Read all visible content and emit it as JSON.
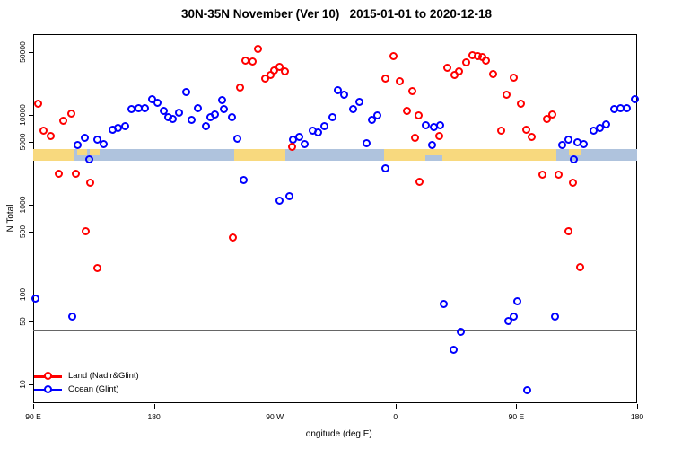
{
  "chart_data": {
    "type": "scatter",
    "title": "30N-35N November (Ver 10)   2015-01-01 to 2020-12-18",
    "xlabel": "Longitude (deg E)",
    "ylabel": "N Total",
    "x_axis": {
      "note": "longitude axis is continuous from 90E eastward through 180, 90W, 0, back to 180 (units: deg along axis, 90..540)",
      "range": [
        90,
        540
      ],
      "ticks": [
        {
          "pos": 90,
          "label": "90 E"
        },
        {
          "pos": 180,
          "label": "180"
        },
        {
          "pos": 270,
          "label": "90 W"
        },
        {
          "pos": 360,
          "label": "0"
        },
        {
          "pos": 450,
          "label": "90 E"
        },
        {
          "pos": 540,
          "label": "180"
        }
      ]
    },
    "y_axis": {
      "scale": "log10",
      "range": [
        6.2,
        79400
      ],
      "ticks": [
        50000,
        10000,
        5000,
        1000,
        500,
        100,
        50,
        10
      ]
    },
    "reference_line": {
      "value": 40,
      "color": "#666666"
    },
    "map_strip": {
      "description": "land/ocean strip drawn across the plot near N=3000-4200",
      "value_top": 4170,
      "value_bottom": 3090,
      "ocean_color": "#AFC3DD",
      "land_color": "#F8D97E",
      "land_segments": [
        {
          "from": 90,
          "to": 121,
          "part": "full"
        },
        {
          "from": 122.5,
          "to": 130,
          "part": "top"
        },
        {
          "from": 132,
          "to": 139.5,
          "part": "top"
        },
        {
          "from": 240,
          "to": 278,
          "part": "full"
        },
        {
          "from": 351.5,
          "to": 480,
          "part": "full"
        },
        {
          "from": 489,
          "to": 498,
          "part": "top"
        }
      ],
      "ocean_overlays": [
        {
          "from": 382,
          "to": 395,
          "part": "bottom"
        }
      ]
    },
    "legend": [
      {
        "name": "land",
        "label": "Land (Nadir&Glint)",
        "color": "#FF0000"
      },
      {
        "name": "ocean",
        "label": "Ocean (Glint)",
        "color": "#0000FF"
      }
    ],
    "series": [
      {
        "name": "Land (Nadir&Glint)",
        "color": "#FF0000",
        "points": [
          [
            93.8,
            13200
          ],
          [
            98.2,
            6600
          ],
          [
            103.6,
            5750
          ],
          [
            109.4,
            2190
          ],
          [
            112.5,
            8500
          ],
          [
            118.8,
            10200
          ],
          [
            122.1,
            2190
          ],
          [
            129.5,
            505
          ],
          [
            132.6,
            1730
          ],
          [
            138.4,
            198
          ],
          [
            239.2,
            430
          ],
          [
            244.4,
            19800
          ],
          [
            248.6,
            40100
          ],
          [
            253.8,
            38600
          ],
          [
            257.8,
            53700
          ],
          [
            263.1,
            25300
          ],
          [
            267.2,
            27900
          ],
          [
            269.9,
            31000
          ],
          [
            273.8,
            34200
          ],
          [
            277.8,
            30500
          ],
          [
            283.2,
            4430
          ],
          [
            353.0,
            25400
          ],
          [
            358.6,
            45000
          ],
          [
            363.7,
            23300
          ],
          [
            368.6,
            10900
          ],
          [
            372.6,
            18200
          ],
          [
            374.6,
            5460
          ],
          [
            377.5,
            9900
          ],
          [
            378.2,
            1790
          ],
          [
            392.7,
            5740
          ],
          [
            398.7,
            33300
          ],
          [
            403.9,
            27900
          ],
          [
            407.6,
            30500
          ],
          [
            412.8,
            37800
          ],
          [
            417.5,
            46000
          ],
          [
            421.5,
            44700
          ],
          [
            425.0,
            43700
          ],
          [
            427.8,
            40100
          ],
          [
            432.9,
            28300
          ],
          [
            438.9,
            6650
          ],
          [
            442.7,
            16500
          ],
          [
            448.5,
            26000
          ],
          [
            453.4,
            13300
          ],
          [
            457.4,
            6760
          ],
          [
            461.9,
            5590
          ],
          [
            469.4,
            2160
          ],
          [
            473.0,
            8990
          ],
          [
            476.8,
            10100
          ],
          [
            481.9,
            2130
          ],
          [
            489.1,
            509
          ],
          [
            492.4,
            1730
          ],
          [
            497.6,
            201
          ]
        ]
      },
      {
        "name": "Ocean (Glint)",
        "color": "#0000FF",
        "points": [
          [
            92.0,
            90
          ],
          [
            119.2,
            57
          ],
          [
            123.2,
            4630
          ],
          [
            129.0,
            5500
          ],
          [
            132.2,
            3180
          ],
          [
            138.2,
            5250
          ],
          [
            142.9,
            4680
          ],
          [
            149.6,
            6760
          ],
          [
            153.4,
            7030
          ],
          [
            158.9,
            7410
          ],
          [
            163.8,
            11400
          ],
          [
            169.0,
            11700
          ],
          [
            173.4,
            11700
          ],
          [
            179.0,
            14800
          ],
          [
            182.8,
            13500
          ],
          [
            187.5,
            10900
          ],
          [
            190.6,
            9330
          ],
          [
            194.2,
            8990
          ],
          [
            198.6,
            10600
          ],
          [
            204.0,
            17700
          ],
          [
            208.0,
            8790
          ],
          [
            213.1,
            11700
          ],
          [
            218.7,
            7410
          ],
          [
            222.0,
            9330
          ],
          [
            225.4,
            9930
          ],
          [
            230.7,
            14600
          ],
          [
            232.5,
            11400
          ],
          [
            238.1,
            9330
          ],
          [
            242.6,
            5370
          ],
          [
            247.0,
            1860
          ],
          [
            273.8,
            1090
          ],
          [
            280.9,
            1250
          ],
          [
            284.0,
            5280
          ],
          [
            288.8,
            5590
          ],
          [
            292.8,
            4680
          ],
          [
            298.3,
            6620
          ],
          [
            302.3,
            6280
          ],
          [
            307.3,
            7430
          ],
          [
            313.5,
            9330
          ],
          [
            317.3,
            18600
          ],
          [
            321.8,
            16800
          ],
          [
            328.5,
            11500
          ],
          [
            333.0,
            13700
          ],
          [
            338.5,
            4790
          ],
          [
            343.0,
            8710
          ],
          [
            347.0,
            9820
          ],
          [
            352.6,
            2500
          ],
          [
            383.1,
            7590
          ],
          [
            387.5,
            4570
          ],
          [
            388.6,
            7240
          ],
          [
            393.6,
            7590
          ],
          [
            396.5,
            79
          ],
          [
            403.2,
            24
          ],
          [
            409.2,
            38
          ],
          [
            444.0,
            51
          ],
          [
            448.5,
            56
          ],
          [
            451.2,
            84
          ],
          [
            458.3,
            8.5
          ],
          [
            479.0,
            57
          ],
          [
            484.2,
            4630
          ],
          [
            489.1,
            5280
          ],
          [
            493.1,
            3210
          ],
          [
            495.8,
            4900
          ],
          [
            500.7,
            4680
          ],
          [
            508.1,
            6650
          ],
          [
            512.5,
            7080
          ],
          [
            517.0,
            7760
          ],
          [
            523.0,
            11400
          ],
          [
            528.1,
            11700
          ],
          [
            532.6,
            11700
          ],
          [
            538.6,
            14800
          ]
        ]
      }
    ]
  }
}
